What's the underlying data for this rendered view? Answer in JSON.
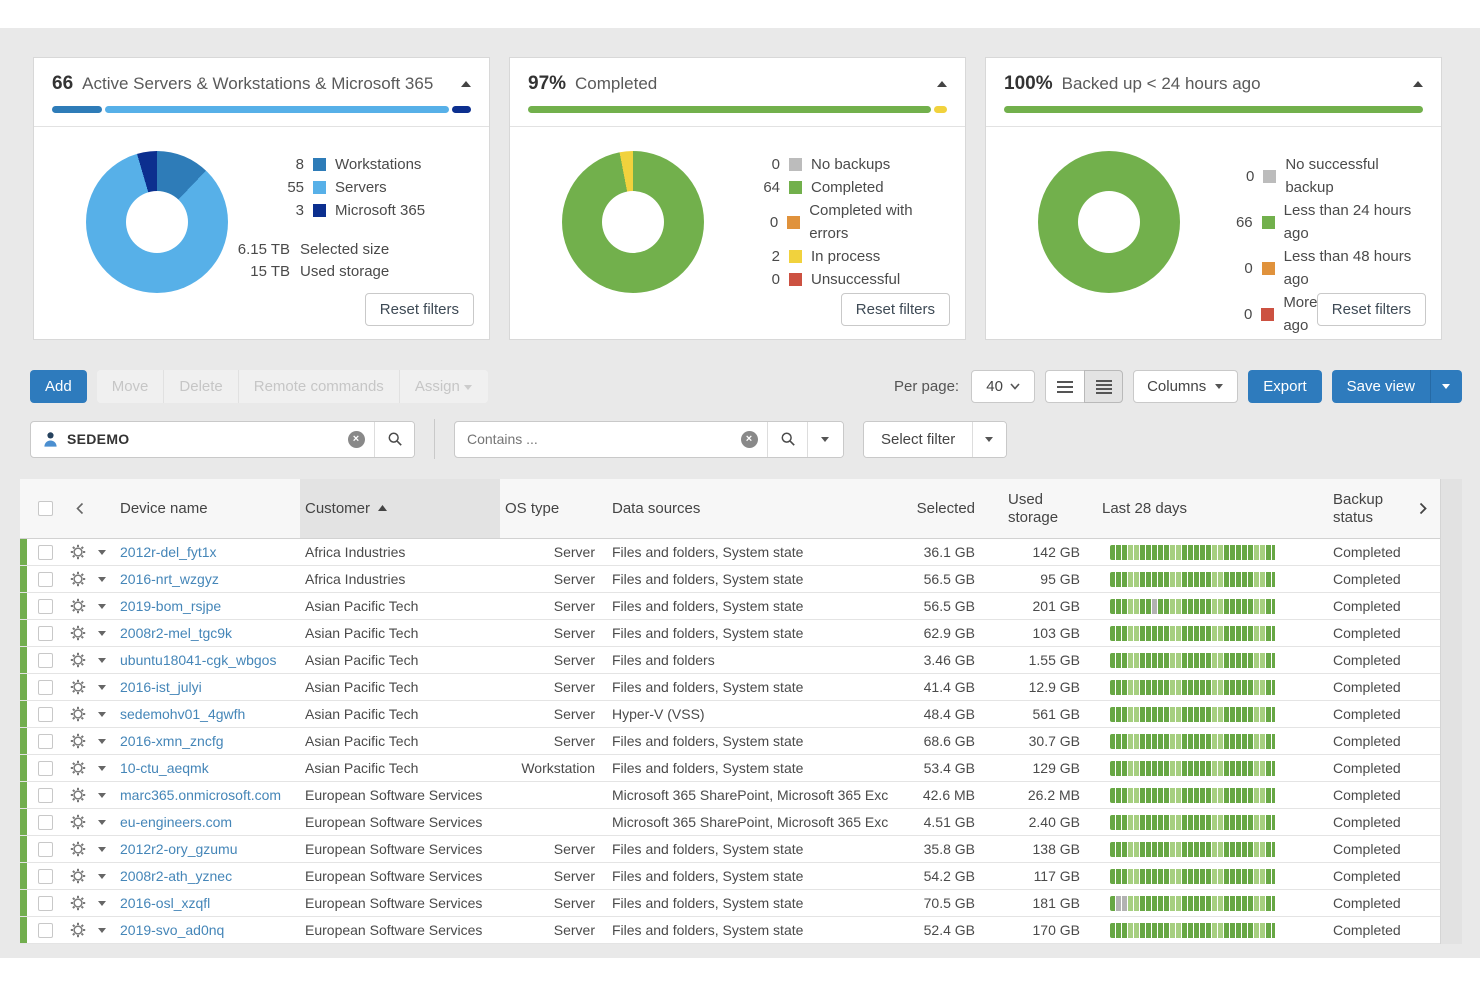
{
  "colors": {
    "accent_blue": "#2e7bbd",
    "link_blue": "#4586b8",
    "green": "#72b04c",
    "bar_green_dark": "#67a744",
    "bar_green_light": "#a6cf80",
    "bar_gray": "#b2b2b2",
    "yellow": "#f1d23d",
    "orange": "#e0923c",
    "red": "#cc5141",
    "gray_swatch": "#bcbcbc",
    "steel_blue": "#2e7cb8",
    "light_blue": "#57b0e8",
    "navy": "#0c2f8f"
  },
  "cards": [
    {
      "value": "66",
      "title": "Active Servers & Workstations & Microsoft 365",
      "reset_label": "Reset filters",
      "donut": [
        {
          "label": "Workstations",
          "value": 8,
          "color": "#2e7cb8"
        },
        {
          "label": "Servers",
          "value": 55,
          "color": "#57b0e8"
        },
        {
          "label": "Microsoft 365",
          "value": 3,
          "color": "#0c2f8f"
        }
      ],
      "stats": [
        {
          "value": "6.15 TB",
          "label": "Selected size"
        },
        {
          "value": "15 TB",
          "label": "Used storage"
        }
      ]
    },
    {
      "value": "97%",
      "title": "Completed",
      "reset_label": "Reset filters",
      "donut": [
        {
          "label": "No backups",
          "value": 0,
          "color": "#bcbcbc"
        },
        {
          "label": "Completed",
          "value": 64,
          "color": "#72b04c"
        },
        {
          "label": "Completed with errors",
          "value": 0,
          "color": "#e0923c"
        },
        {
          "label": "In process",
          "value": 2,
          "color": "#f1d23d"
        },
        {
          "label": "Unsuccessful",
          "value": 0,
          "color": "#cc5141"
        }
      ],
      "stats": []
    },
    {
      "value": "100%",
      "title": "Backed up < 24 hours ago",
      "reset_label": "Reset filters",
      "donut": [
        {
          "label": "No successful backup",
          "value": 0,
          "color": "#bcbcbc"
        },
        {
          "label": "Less than 24 hours ago",
          "value": 66,
          "color": "#72b04c"
        },
        {
          "label": "Less than 48 hours ago",
          "value": 0,
          "color": "#e0923c"
        },
        {
          "label": "More than 48 hours ago",
          "value": 0,
          "color": "#cc5141"
        }
      ],
      "stats": []
    }
  ],
  "chart_data": [
    {
      "type": "pie",
      "title": "66 Active Servers & Workstations & Microsoft 365",
      "categories": [
        "Workstations",
        "Servers",
        "Microsoft 365"
      ],
      "values": [
        8,
        55,
        3
      ]
    },
    {
      "type": "pie",
      "title": "97% Completed",
      "categories": [
        "No backups",
        "Completed",
        "Completed with errors",
        "In process",
        "Unsuccessful"
      ],
      "values": [
        0,
        64,
        0,
        2,
        0
      ]
    },
    {
      "type": "pie",
      "title": "100% Backed up < 24 hours ago",
      "categories": [
        "No successful backup",
        "Less than 24 hours ago",
        "Less than 48 hours ago",
        "More than 48 hours ago"
      ],
      "values": [
        0,
        66,
        0,
        0
      ]
    }
  ],
  "toolbar": {
    "add": "Add",
    "disabled_actions": [
      "Move",
      "Delete",
      "Remote commands"
    ],
    "assign": "Assign",
    "per_page_label": "Per page:",
    "per_page_value": "40",
    "columns": "Columns",
    "export": "Export",
    "save_view": "Save view"
  },
  "filters": {
    "customer_search_value": "SEDEMO",
    "contains_placeholder": "Contains ...",
    "select_filter_label": "Select filter"
  },
  "table": {
    "headers": {
      "device_name": "Device name",
      "customer": "Customer",
      "os_type": "OS type",
      "data_sources": "Data sources",
      "selected": "Selected",
      "used_storage_1": "Used",
      "used_storage_2": "storage",
      "last_28_days": "Last 28 days",
      "backup_status_1": "Backup",
      "backup_status_2": "status"
    },
    "rows": [
      {
        "device": "2012r-del_fyt1x",
        "customer": "Africa Industries",
        "os": "Server",
        "sources": "Files and folders, System state",
        "selected": "36.1 GB",
        "used": "142 GB",
        "days": "dddlldddddlldddddlldddddlldd",
        "status": "Completed"
      },
      {
        "device": "2016-nrt_wzgyz",
        "customer": "Africa Industries",
        "os": "Server",
        "sources": "Files and folders, System state",
        "selected": "56.5 GB",
        "used": "95 GB",
        "days": "dddlldddddlldddddlldddddlldd",
        "status": "Completed"
      },
      {
        "device": "2019-bom_rsjpe",
        "customer": "Asian Pacific Tech",
        "os": "Server",
        "sources": "Files and folders, System state",
        "selected": "56.5 GB",
        "used": "201 GB",
        "days": "dddllddgddlldddddlldddddlldd",
        "status": "Completed"
      },
      {
        "device": "2008r2-mel_tgc9k",
        "customer": "Asian Pacific Tech",
        "os": "Server",
        "sources": "Files and folders, System state",
        "selected": "62.9 GB",
        "used": "103 GB",
        "days": "dddlldddddlldddddlldddddlldd",
        "status": "Completed"
      },
      {
        "device": "ubuntu18041-cgk_wbgos",
        "customer": "Asian Pacific Tech",
        "os": "Server",
        "sources": "Files and folders",
        "selected": "3.46 GB",
        "used": "1.55 GB",
        "days": "dddlldddddlldddddlldddddlldd",
        "status": "Completed"
      },
      {
        "device": "2016-ist_julyi",
        "customer": "Asian Pacific Tech",
        "os": "Server",
        "sources": "Files and folders, System state",
        "selected": "41.4 GB",
        "used": "12.9 GB",
        "days": "dddlldddddlldddddlldddddlldd",
        "status": "Completed"
      },
      {
        "device": "sedemohv01_4gwfh",
        "customer": "Asian Pacific Tech",
        "os": "Server",
        "sources": "Hyper-V (VSS)",
        "selected": "48.4 GB",
        "used": "561 GB",
        "days": "dddlldddddlldddddlldddddlldd",
        "status": "Completed"
      },
      {
        "device": "2016-xmn_zncfg",
        "customer": "Asian Pacific Tech",
        "os": "Server",
        "sources": "Files and folders, System state",
        "selected": "68.6 GB",
        "used": "30.7 GB",
        "days": "dddlldddddlldddddlldddddlldd",
        "status": "Completed"
      },
      {
        "device": "10-ctu_aeqmk",
        "customer": "Asian Pacific Tech",
        "os": "Workstation",
        "sources": "Files and folders, System state",
        "selected": "53.4 GB",
        "used": "129 GB",
        "days": "dddlldddddlldddddlldddddlldd",
        "status": "Completed"
      },
      {
        "device": "marc365.onmicrosoft.com",
        "customer": "European Software Services",
        "os": "",
        "sources": "Microsoft 365 SharePoint, Microsoft 365 Exc…",
        "selected": "42.6 MB",
        "used": "26.2 MB",
        "days": "dddlldddddlldddddlldddddlldd",
        "status": "Completed"
      },
      {
        "device": "eu-engineers.com",
        "customer": "European Software Services",
        "os": "",
        "sources": "Microsoft 365 SharePoint, Microsoft 365 Exc…",
        "selected": "4.51 GB",
        "used": "2.40 GB",
        "days": "dddlldddddlldddddlldddddlldd",
        "status": "Completed"
      },
      {
        "device": "2012r2-ory_gzumu",
        "customer": "European Software Services",
        "os": "Server",
        "sources": "Files and folders, System state",
        "selected": "35.8 GB",
        "used": "138 GB",
        "days": "dddlldddddlldddddlldddddlldd",
        "status": "Completed"
      },
      {
        "device": "2008r2-ath_yznec",
        "customer": "European Software Services",
        "os": "Server",
        "sources": "Files and folders, System state",
        "selected": "54.2 GB",
        "used": "117 GB",
        "days": "dddlldddddlldddddlldddddlldd",
        "status": "Completed"
      },
      {
        "device": "2016-osl_xzqfl",
        "customer": "European Software Services",
        "os": "Server",
        "sources": "Files and folders, System state",
        "selected": "70.5 GB",
        "used": "181 GB",
        "days": "dgglldddddlldddddlldddddlldd",
        "status": "Completed"
      },
      {
        "device": "2019-svo_ad0nq",
        "customer": "European Software Services",
        "os": "Server",
        "sources": "Files and folders, System state",
        "selected": "52.4 GB",
        "used": "170 GB",
        "days": "dddlldddddlldddddlldddddlldd",
        "status": "Completed"
      }
    ]
  }
}
